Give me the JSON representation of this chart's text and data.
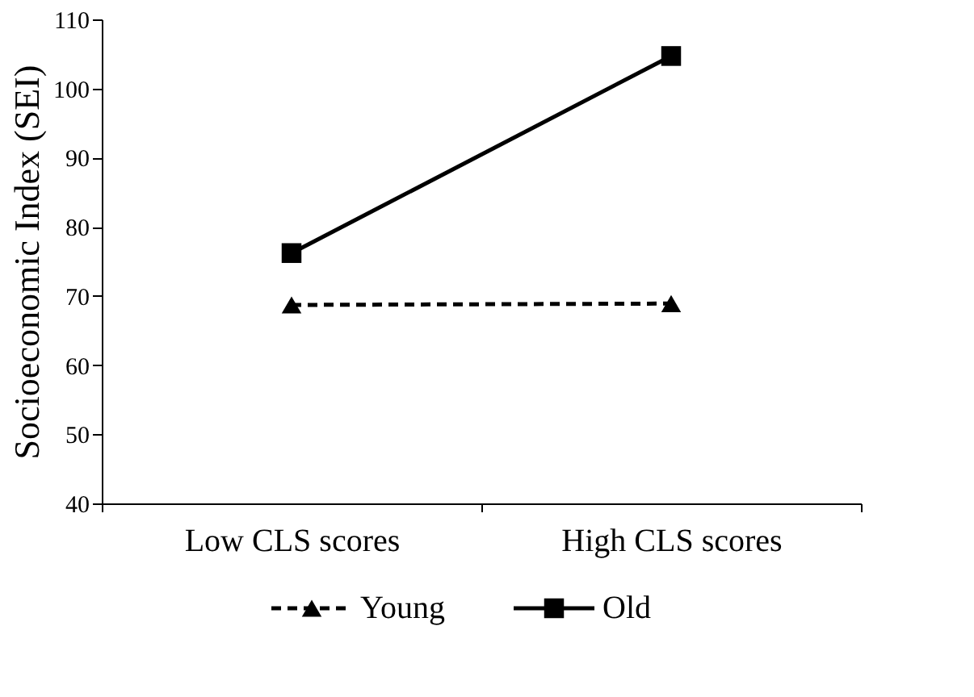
{
  "chart_data": {
    "type": "line",
    "ylabel": "Socioeconomic Index (SEI)",
    "categories": [
      "Low CLS scores",
      "High CLS scores"
    ],
    "series": [
      {
        "name": "Young",
        "color": "#000000",
        "values": [
          68.7,
          68.9
        ],
        "marker": "triangle",
        "line_style": "dashed"
      },
      {
        "name": "Old",
        "color": "#000000",
        "values": [
          76.2,
          104.7
        ],
        "marker": "square",
        "line_style": "solid"
      }
    ],
    "ylim": [
      40,
      110
    ],
    "yticks": [
      40,
      50,
      60,
      70,
      80,
      90,
      100,
      110
    ],
    "grid": false,
    "legend": "bottom"
  }
}
